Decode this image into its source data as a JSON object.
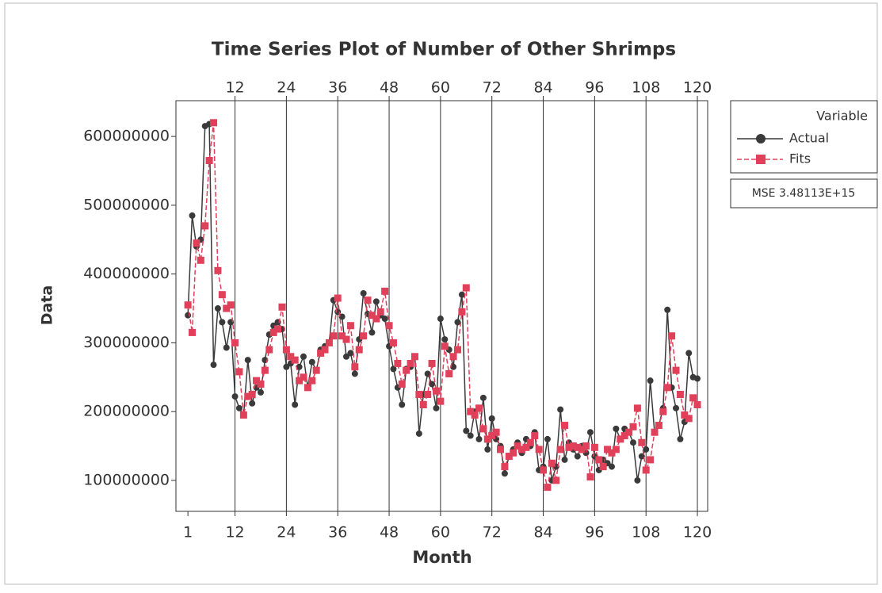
{
  "chart_data": {
    "type": "line",
    "title": "Time Series Plot of Number of Other Shrimps",
    "x_label": "Month",
    "y_label": "Data",
    "legend_title": "Variable",
    "legend_position": "right",
    "annotation": "MSE 3.48113E+15",
    "x": [
      1,
      2,
      3,
      4,
      5,
      6,
      7,
      8,
      9,
      10,
      11,
      12,
      13,
      14,
      15,
      16,
      17,
      18,
      19,
      20,
      21,
      22,
      23,
      24,
      25,
      26,
      27,
      28,
      29,
      30,
      31,
      32,
      33,
      34,
      35,
      36,
      37,
      38,
      39,
      40,
      41,
      42,
      43,
      44,
      45,
      46,
      47,
      48,
      49,
      50,
      51,
      52,
      53,
      54,
      55,
      56,
      57,
      58,
      59,
      60,
      61,
      62,
      63,
      64,
      65,
      66,
      67,
      68,
      69,
      70,
      71,
      72,
      73,
      74,
      75,
      76,
      77,
      78,
      79,
      80,
      81,
      82,
      83,
      84,
      85,
      86,
      87,
      88,
      89,
      90,
      91,
      92,
      93,
      94,
      95,
      96,
      97,
      98,
      99,
      100,
      101,
      102,
      103,
      104,
      105,
      106,
      107,
      108,
      109,
      110,
      111,
      112,
      113,
      114,
      115,
      116,
      117,
      118,
      119,
      120
    ],
    "series": [
      {
        "name": "Actual",
        "color": "#3a3a3a",
        "marker": "circle",
        "dashed": false,
        "values": [
          340000000,
          485000000,
          440000000,
          450000000,
          615000000,
          618000000,
          268000000,
          350000000,
          330000000,
          293000000,
          330000000,
          222000000,
          205000000,
          195000000,
          275000000,
          212000000,
          235000000,
          228000000,
          275000000,
          312000000,
          325000000,
          330000000,
          320000000,
          265000000,
          270000000,
          210000000,
          265000000,
          280000000,
          235000000,
          272000000,
          260000000,
          290000000,
          295000000,
          300000000,
          362000000,
          345000000,
          338000000,
          280000000,
          285000000,
          255000000,
          305000000,
          372000000,
          342000000,
          315000000,
          360000000,
          340000000,
          335000000,
          295000000,
          262000000,
          235000000,
          210000000,
          262000000,
          265000000,
          280000000,
          168000000,
          225000000,
          255000000,
          240000000,
          205000000,
          335000000,
          305000000,
          290000000,
          265000000,
          330000000,
          370000000,
          172000000,
          165000000,
          200000000,
          160000000,
          220000000,
          145000000,
          190000000,
          160000000,
          150000000,
          110000000,
          135000000,
          145000000,
          155000000,
          140000000,
          160000000,
          150000000,
          170000000,
          115000000,
          120000000,
          160000000,
          100000000,
          120000000,
          203000000,
          130000000,
          155000000,
          145000000,
          135000000,
          150000000,
          140000000,
          170000000,
          135000000,
          115000000,
          130000000,
          125000000,
          120000000,
          175000000,
          160000000,
          175000000,
          170000000,
          155000000,
          100000000,
          135000000,
          145000000,
          245000000,
          170000000,
          180000000,
          205000000,
          348000000,
          235000000,
          205000000,
          160000000,
          185000000,
          285000000,
          250000000,
          248000000
        ]
      },
      {
        "name": "Fits",
        "color": "#e0405a",
        "marker": "square",
        "dashed": true,
        "values": [
          355000000,
          315000000,
          445000000,
          420000000,
          470000000,
          565000000,
          620000000,
          405000000,
          370000000,
          350000000,
          355000000,
          300000000,
          258000000,
          195000000,
          222000000,
          225000000,
          245000000,
          240000000,
          260000000,
          290000000,
          315000000,
          320000000,
          352000000,
          290000000,
          280000000,
          275000000,
          245000000,
          250000000,
          235000000,
          245000000,
          260000000,
          285000000,
          290000000,
          300000000,
          310000000,
          365000000,
          310000000,
          305000000,
          325000000,
          265000000,
          290000000,
          310000000,
          362000000,
          340000000,
          335000000,
          345000000,
          375000000,
          325000000,
          300000000,
          270000000,
          240000000,
          260000000,
          270000000,
          280000000,
          225000000,
          210000000,
          225000000,
          270000000,
          230000000,
          215000000,
          295000000,
          255000000,
          280000000,
          290000000,
          345000000,
          380000000,
          200000000,
          195000000,
          205000000,
          175000000,
          160000000,
          165000000,
          170000000,
          145000000,
          120000000,
          135000000,
          140000000,
          150000000,
          145000000,
          148000000,
          155000000,
          165000000,
          145000000,
          115000000,
          90000000,
          125000000,
          100000000,
          145000000,
          180000000,
          148000000,
          150000000,
          148000000,
          145000000,
          150000000,
          105000000,
          148000000,
          130000000,
          120000000,
          145000000,
          140000000,
          145000000,
          160000000,
          165000000,
          170000000,
          178000000,
          205000000,
          155000000,
          115000000,
          130000000,
          170000000,
          180000000,
          200000000,
          235000000,
          310000000,
          260000000,
          225000000,
          195000000,
          190000000,
          220000000,
          210000000
        ]
      }
    ],
    "xlim": [
      -1.8,
      122.4
    ],
    "ylim": [
      55000000,
      652000000
    ],
    "xticks": [
      1,
      12,
      24,
      36,
      48,
      60,
      72,
      84,
      96,
      108,
      120
    ],
    "top_xticks": [
      12,
      24,
      36,
      48,
      60,
      72,
      84,
      96,
      108,
      120
    ],
    "yticks": [
      100000000,
      200000000,
      300000000,
      400000000,
      500000000,
      600000000
    ]
  }
}
